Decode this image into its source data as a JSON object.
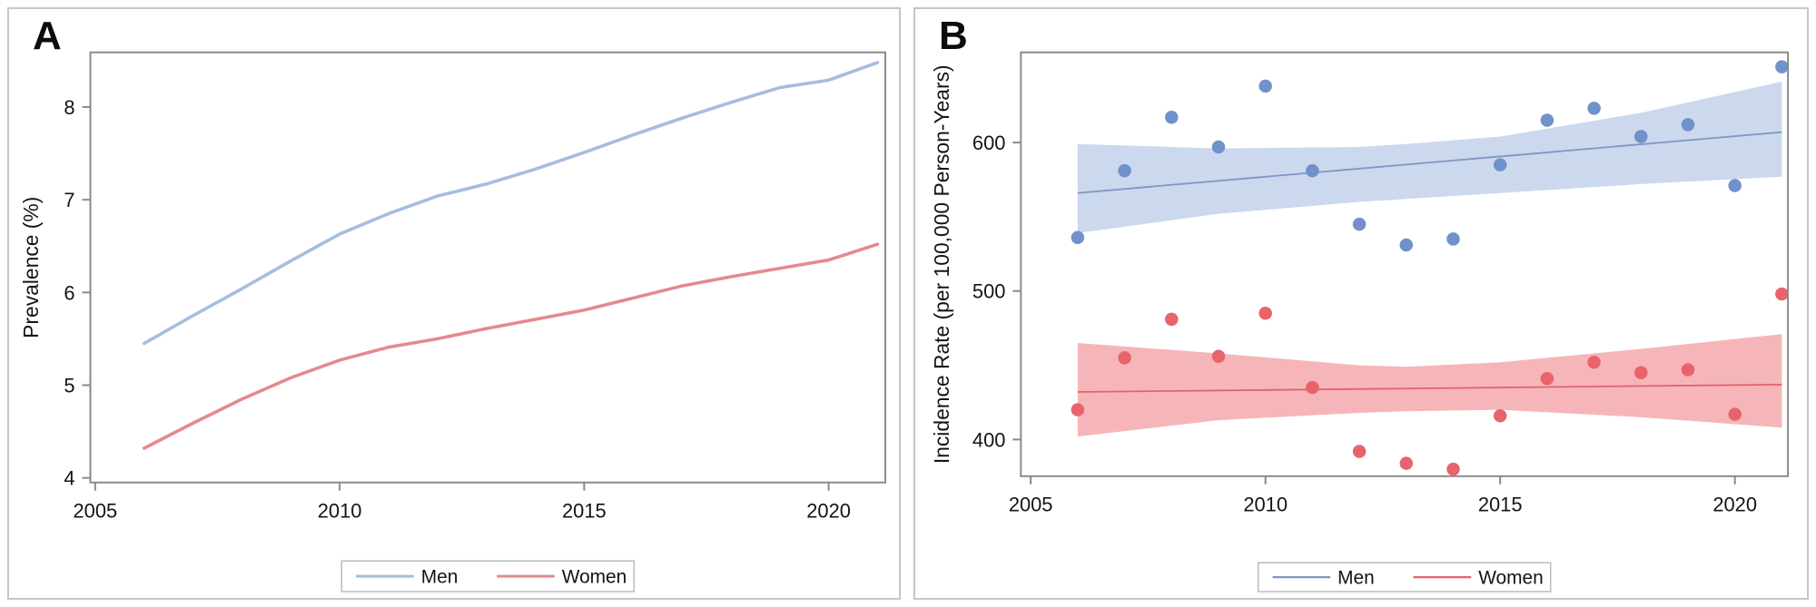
{
  "figure": {
    "background": "#ffffff",
    "card_border_color": "#c6c6c6",
    "frame_color": "#8a8a8a",
    "tick_text_color": "#141414"
  },
  "chart_data": [
    {
      "id": "panel_a",
      "panel_label": "A",
      "type": "line",
      "title": "",
      "xlabel": "",
      "ylabel": "Prevalence (%)",
      "x": [
        2006,
        2007,
        2008,
        2009,
        2010,
        2011,
        2012,
        2013,
        2014,
        2015,
        2016,
        2017,
        2018,
        2019,
        2020,
        2021
      ],
      "xticks": [
        "2005",
        "2010",
        "2015",
        "2020"
      ],
      "yticks": [
        "4",
        "5",
        "6",
        "7",
        "8"
      ],
      "xlim": [
        2004.9,
        2021.16
      ],
      "ylim": [
        3.95,
        8.59
      ],
      "grid": false,
      "legend_position": "bottom-center",
      "series": [
        {
          "name": "Men",
          "color": "#a5bddf",
          "values": [
            5.45,
            5.75,
            6.04,
            6.34,
            6.63,
            6.85,
            7.04,
            7.17,
            7.33,
            7.51,
            7.7,
            7.88,
            8.05,
            8.21,
            8.29,
            8.48
          ]
        },
        {
          "name": "Women",
          "color": "#e5898d",
          "values": [
            4.32,
            4.59,
            4.85,
            5.08,
            5.27,
            5.41,
            5.5,
            5.61,
            5.71,
            5.81,
            5.94,
            6.07,
            6.17,
            6.26,
            6.35,
            6.52
          ]
        }
      ]
    },
    {
      "id": "panel_b",
      "panel_label": "B",
      "type": "scatter",
      "title": "",
      "xlabel": "",
      "ylabel": "Incidence Rate (per 100,000 Person-Years)",
      "x": [
        2006,
        2007,
        2008,
        2009,
        2010,
        2011,
        2012,
        2013,
        2014,
        2015,
        2016,
        2017,
        2018,
        2019,
        2020,
        2021
      ],
      "xticks": [
        "2005",
        "2010",
        "2015",
        "2020"
      ],
      "yticks": [
        "400",
        "500",
        "600"
      ],
      "xlim": [
        2004.79,
        2021.13
      ],
      "ylim": [
        375.3,
        660.7
      ],
      "grid": false,
      "legend_position": "bottom-center",
      "series": [
        {
          "name": "Men",
          "color": "#7191cb",
          "values": [
            536,
            581,
            617,
            597,
            638,
            581,
            545,
            531,
            535,
            585,
            615,
            623,
            604,
            612,
            571,
            651
          ],
          "fit_line": {
            "start": 566,
            "end": 607,
            "color": "#7e97c2"
          },
          "band": {
            "color": "#cbd8ee",
            "points": [
              [
                2006,
                539,
                599
              ],
              [
                2009,
                552,
                596
              ],
              [
                2012,
                560,
                597
              ],
              [
                2013,
                562,
                599
              ],
              [
                2015,
                566,
                604
              ],
              [
                2018,
                572,
                620
              ],
              [
                2021,
                577,
                641
              ]
            ]
          }
        },
        {
          "name": "Women",
          "color": "#e8646b",
          "values": [
            420,
            455,
            481,
            456,
            485,
            435,
            392,
            384,
            380,
            416,
            441,
            452,
            445,
            447,
            417,
            498
          ],
          "fit_line": {
            "start": 432,
            "end": 437,
            "color": "#e0636a"
          },
          "band": {
            "color": "#f6b6b9",
            "points": [
              [
                2006,
                402,
                465
              ],
              [
                2009,
                413,
                458
              ],
              [
                2012,
                418,
                450
              ],
              [
                2013,
                419,
                449
              ],
              [
                2015,
                420,
                452
              ],
              [
                2018,
                415,
                461
              ],
              [
                2021,
                408,
                471
              ]
            ]
          }
        }
      ]
    }
  ]
}
